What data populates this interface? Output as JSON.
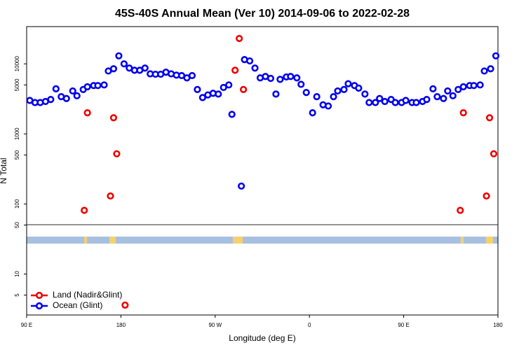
{
  "chart_data": {
    "type": "scatter",
    "title": "45S-40S Annual Mean (Ver 10)   2014-09-06 to 2022-02-28",
    "x_label": "Longitude (deg E)",
    "y_label": "N Total",
    "xlim": [
      90,
      540
    ],
    "xticks": [
      {
        "value": 90,
        "label": "90 E"
      },
      {
        "value": 180,
        "label": "180"
      },
      {
        "value": 270,
        "label": "90 W"
      },
      {
        "value": 360,
        "label": "0"
      },
      {
        "value": 450,
        "label": "90 E"
      },
      {
        "value": 540,
        "label": "180"
      }
    ],
    "ylim": [
      2.6,
      34000
    ],
    "log_y": true,
    "yticks": [
      5,
      10,
      50,
      100,
      500,
      1000,
      5000,
      10000
    ],
    "legend": "lower left",
    "series": [
      {
        "name": "Land (Nadir&Glint)",
        "color": "#ee0000",
        "x": [
          145,
          148,
          170,
          173,
          176,
          184,
          289,
          293,
          297,
          504,
          507,
          529,
          532,
          536
        ],
        "values": [
          81,
          2000,
          130,
          1700,
          520,
          3.6,
          8100,
          23000,
          4300,
          81,
          2000,
          130,
          1700,
          520
        ]
      },
      {
        "name": "Ocean (Glint)",
        "color": "#0000ee",
        "x": [
          93,
          98,
          103,
          108,
          113,
          118,
          123,
          128,
          134,
          138,
          144,
          148,
          154,
          158,
          164,
          168,
          173,
          178,
          183,
          188,
          193,
          198,
          203,
          208,
          213,
          218,
          223,
          228,
          233,
          238,
          243,
          248,
          253,
          258,
          263,
          268,
          273,
          278,
          283,
          286,
          295,
          298,
          303,
          308,
          313,
          318,
          323,
          328,
          332,
          338,
          342,
          348,
          352,
          357,
          363,
          367,
          373,
          378,
          383,
          387,
          393,
          397,
          403,
          407,
          413,
          417,
          423,
          427,
          432,
          438,
          442,
          448,
          452,
          458,
          462,
          468,
          472,
          478,
          482,
          488,
          492,
          497,
          502,
          507,
          513,
          517,
          523,
          527,
          533,
          538
        ],
        "values": [
          3000,
          2800,
          2800,
          2900,
          3100,
          4400,
          3400,
          3200,
          4100,
          3500,
          4300,
          4700,
          4900,
          4900,
          5000,
          7900,
          8500,
          13000,
          10000,
          8700,
          8100,
          8100,
          8700,
          7200,
          7100,
          7100,
          7600,
          7200,
          6900,
          6800,
          6300,
          6800,
          4300,
          3300,
          3600,
          3800,
          3700,
          4600,
          5000,
          1900,
          180,
          11500,
          11000,
          8700,
          6300,
          6600,
          6200,
          3700,
          6000,
          6500,
          6600,
          6300,
          5100,
          3900,
          2000,
          3400,
          2600,
          2500,
          3400,
          4100,
          4300,
          5200,
          4900,
          4500,
          3700,
          2800,
          2800,
          3200,
          2900,
          3100,
          2800,
          2800,
          3000,
          2800,
          2800,
          2900,
          3100,
          4400,
          3400,
          3200,
          4100,
          3500,
          4300,
          4700,
          4900,
          4900,
          5000,
          7900,
          8500,
          13000
        ]
      }
    ]
  }
}
